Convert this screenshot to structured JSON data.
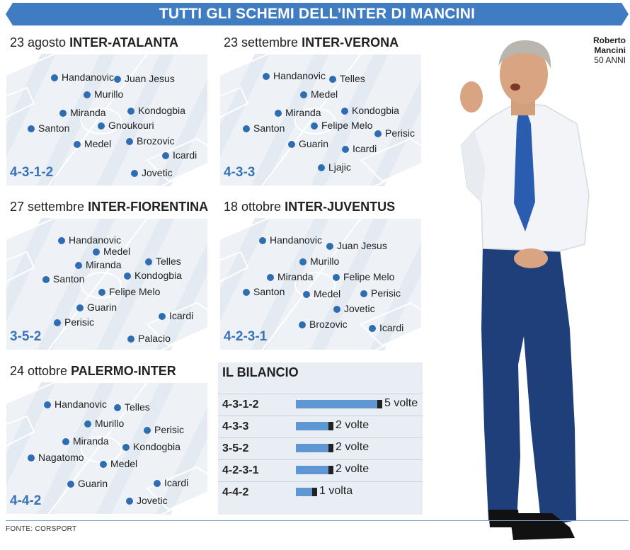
{
  "title": "TUTTI GLI SCHEMI DELL’INTER DI MANCINI",
  "colors": {
    "banner": "#3f7cc2",
    "dot": "#2f6db3",
    "formation": "#3a73b8",
    "bar": "#5f97d2"
  },
  "coach": {
    "first_name": "Roberto",
    "last_name": "Mancini",
    "age": "50 ANNI"
  },
  "matches": [
    {
      "date": "23 agosto",
      "teams": "INTER-ATALANTA",
      "formation": "4-3-1-2",
      "players": [
        "Handanovic",
        "Juan Jesus",
        "Murillo",
        "Miranda",
        "Kondogbia",
        "Santon",
        "Gnoukouri",
        "Medel",
        "Brozovic",
        "Icardi",
        "Jovetic"
      ]
    },
    {
      "date": "23 settembre",
      "teams": "INTER-VERONA",
      "formation": "4-3-3",
      "players": [
        "Handanovic",
        "Telles",
        "Medel",
        "Miranda",
        "Kondogbia",
        "Santon",
        "Felipe Melo",
        "Perisic",
        "Guarin",
        "Icardi",
        "Ljajic"
      ]
    },
    {
      "date": "27 settembre",
      "teams": "INTER-FIORENTINA",
      "formation": "3-5-2",
      "players": [
        "Handanovic",
        "Medel",
        "Miranda",
        "Telles",
        "Santon",
        "Kondogbia",
        "Felipe Melo",
        "Guarin",
        "Icardi",
        "Perisic",
        "Palacio"
      ]
    },
    {
      "date": "18 ottobre",
      "teams": "INTER-JUVENTUS",
      "formation": "4-2-3-1",
      "players": [
        "Handanovic",
        "Juan Jesus",
        "Murillo",
        "Miranda",
        "Felipe Melo",
        "Santon",
        "Medel",
        "Perisic",
        "Jovetic",
        "Brozovic",
        "Icardi"
      ]
    },
    {
      "date": "24 ottobre",
      "teams": "PALERMO-INTER",
      "formation": "4-4-2",
      "players": [
        "Handanovic",
        "Telles",
        "Murillo",
        "Perisic",
        "Miranda",
        "Kondogbia",
        "Nagatomo",
        "Medel",
        "Guarin",
        "Icardi",
        "Jovetic"
      ]
    }
  ],
  "bilancio": {
    "title": "IL BILANCIO",
    "rows": [
      {
        "formation": "4-3-1-2",
        "count": 5,
        "label": "5 volte"
      },
      {
        "formation": "4-3-3",
        "count": 2,
        "label": "2 volte"
      },
      {
        "formation": "3-5-2",
        "count": 2,
        "label": "2 volte"
      },
      {
        "formation": "4-2-3-1",
        "count": 2,
        "label": "2 volte"
      },
      {
        "formation": "4-4-2",
        "count": 1,
        "label": "1 volta"
      }
    ]
  },
  "source": "FONTE: CORSPORT"
}
